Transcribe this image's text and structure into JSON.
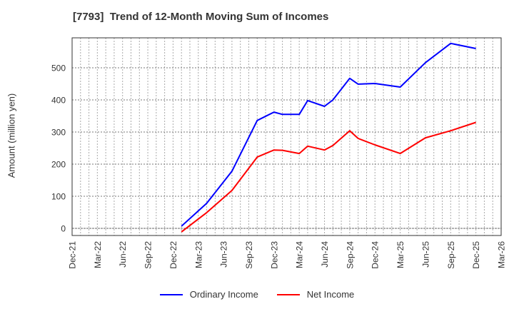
{
  "title": "[7793]  Trend of 12-Month Moving Sum of Incomes",
  "colors": {
    "ordinary_income": "#0000ff",
    "net_income": "#ff0000",
    "grid": "#999999",
    "axis": "#333333"
  },
  "legend": {
    "items": [
      {
        "label": "Ordinary Income",
        "color": "#0000ff"
      },
      {
        "label": "Net Income",
        "color": "#ff0000"
      }
    ]
  },
  "chart_data": {
    "type": "line",
    "title": "[7793]  Trend of 12-Month Moving Sum of Incomes",
    "xlabel": "",
    "ylabel": "Amount (million yen)",
    "ylim": [
      -22,
      593
    ],
    "yticks": [
      0,
      100,
      200,
      300,
      400,
      500
    ],
    "xticks": [
      "Dec-21",
      "Mar-22",
      "Jun-22",
      "Sep-22",
      "Dec-22",
      "Mar-23",
      "Jun-23",
      "Sep-23",
      "Dec-23",
      "Mar-24",
      "Jun-24",
      "Sep-24",
      "Dec-24",
      "Mar-25",
      "Jun-25",
      "Sep-25",
      "Dec-25",
      "Mar-26"
    ],
    "grid": true,
    "legend_position": "bottom",
    "x": [
      "Jan-23",
      "Apr-23",
      "Jul-23",
      "Oct-23",
      "Dec-23",
      "Jan-24",
      "Mar-24",
      "Apr-24",
      "Jun-24",
      "Jul-24",
      "Sep-24",
      "Oct-24",
      "Dec-24",
      "Mar-25",
      "Jun-25",
      "Sep-25",
      "Dec-25"
    ],
    "x_month_index": [
      13,
      16,
      19,
      22,
      24,
      25,
      27,
      28,
      30,
      31,
      33,
      34,
      36,
      39,
      42,
      45,
      48
    ],
    "series": [
      {
        "name": "Ordinary Income",
        "color": "#0000ff",
        "values": [
          7,
          78,
          178,
          336,
          362,
          355,
          355,
          398,
          380,
          400,
          467,
          449,
          451,
          440,
          516,
          576,
          560
        ]
      },
      {
        "name": "Net Income",
        "color": "#ff0000",
        "values": [
          -11,
          49,
          118,
          222,
          244,
          243,
          233,
          256,
          244,
          258,
          304,
          280,
          260,
          233,
          282,
          304,
          330
        ]
      }
    ]
  }
}
